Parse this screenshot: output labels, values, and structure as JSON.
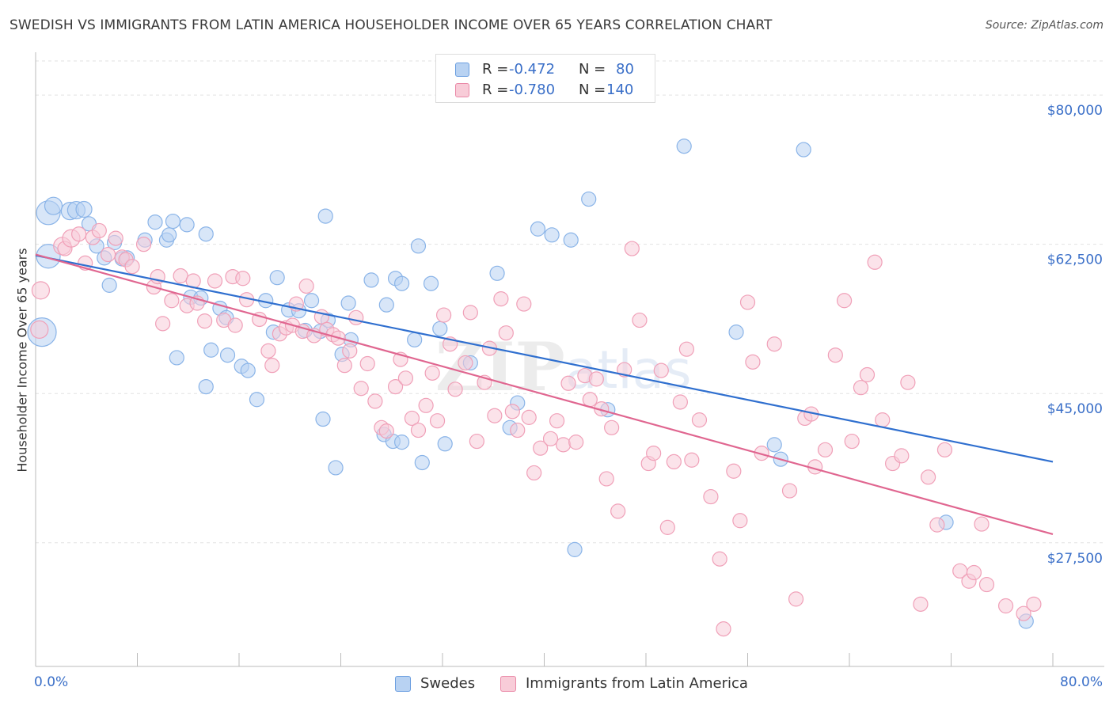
{
  "title": "SWEDISH VS IMMIGRANTS FROM LATIN AMERICA HOUSEHOLDER INCOME OVER 65 YEARS CORRELATION CHART",
  "source": "Source: ZipAtlas.com",
  "watermark": {
    "zip": "ZIP",
    "atlas": "atlas"
  },
  "chart_data": {
    "type": "scatter",
    "xlabel": "",
    "ylabel": "Householder Income Over 65 years",
    "xlim": [
      0,
      80
    ],
    "ylim": [
      13000,
      84000
    ],
    "x_tick_labels": {
      "min": "0.0%",
      "max": "80.0%"
    },
    "y_ticks": [
      {
        "value": 80000,
        "label": "$80,000"
      },
      {
        "value": 62500,
        "label": "$62,500"
      },
      {
        "value": 45000,
        "label": "$45,000"
      },
      {
        "value": 27500,
        "label": "$27,500"
      }
    ],
    "grid": true,
    "legend_position": "bottom-center",
    "stats_box": [
      {
        "r_label": "R = ",
        "r_value": "-0.472",
        "n_label": "N = ",
        "n_value": "80"
      },
      {
        "r_label": "R = ",
        "r_value": "-0.780",
        "n_label": "N = ",
        "n_value": "140"
      }
    ],
    "series": [
      {
        "name": "Swedes",
        "color": "#8ab4e8",
        "fill": "#b8d2f2",
        "line_color": "#2f6fcf",
        "trend": {
          "x": [
            0,
            80
          ],
          "y": [
            61200,
            37000
          ]
        },
        "points": [
          [
            1.0,
            66200,
            15
          ],
          [
            1.4,
            67000,
            11
          ],
          [
            1.0,
            61100,
            15
          ],
          [
            0.5,
            52200,
            18
          ],
          [
            2.7,
            66400,
            11
          ],
          [
            3.2,
            66500,
            11
          ],
          [
            3.8,
            66600,
            10
          ],
          [
            4.2,
            64900,
            9
          ],
          [
            4.8,
            62300,
            9
          ],
          [
            5.4,
            60900,
            9
          ],
          [
            6.2,
            62700,
            9
          ],
          [
            6.8,
            60800,
            9
          ],
          [
            7.2,
            60900,
            9
          ],
          [
            5.8,
            57700,
            9
          ],
          [
            8.6,
            63000,
            9
          ],
          [
            9.4,
            65100,
            9
          ],
          [
            10.3,
            63000,
            9
          ],
          [
            10.5,
            63600,
            9
          ],
          [
            10.8,
            65200,
            9
          ],
          [
            11.9,
            64800,
            9
          ],
          [
            13.4,
            63700,
            9
          ],
          [
            12.2,
            56300,
            9
          ],
          [
            13.0,
            56200,
            9
          ],
          [
            14.5,
            55000,
            9
          ],
          [
            15.0,
            53900,
            9
          ],
          [
            11.1,
            49200,
            9
          ],
          [
            13.8,
            50100,
            9
          ],
          [
            15.1,
            49500,
            9
          ],
          [
            16.2,
            48200,
            9
          ],
          [
            16.7,
            47700,
            9
          ],
          [
            13.4,
            45800,
            9
          ],
          [
            17.4,
            44300,
            9
          ],
          [
            18.7,
            52200,
            9
          ],
          [
            18.1,
            55900,
            9
          ],
          [
            19.0,
            58600,
            9
          ],
          [
            19.9,
            54800,
            9
          ],
          [
            20.7,
            54700,
            9
          ],
          [
            21.2,
            52400,
            9
          ],
          [
            21.7,
            55900,
            9
          ],
          [
            22.4,
            52300,
            9
          ],
          [
            22.8,
            65800,
            9
          ],
          [
            23.0,
            53600,
            9
          ],
          [
            22.6,
            42000,
            9
          ],
          [
            23.6,
            36300,
            9
          ],
          [
            24.1,
            49600,
            9
          ],
          [
            24.6,
            55600,
            9
          ],
          [
            24.8,
            51300,
            9
          ],
          [
            26.4,
            58300,
            9
          ],
          [
            27.4,
            40200,
            9
          ],
          [
            28.1,
            39400,
            9
          ],
          [
            28.8,
            39300,
            9
          ],
          [
            27.6,
            55400,
            9
          ],
          [
            28.3,
            58500,
            9
          ],
          [
            28.8,
            57900,
            9
          ],
          [
            29.8,
            51300,
            9
          ],
          [
            30.1,
            62300,
            9
          ],
          [
            30.4,
            36900,
            9
          ],
          [
            31.1,
            57900,
            9
          ],
          [
            31.8,
            52600,
            9
          ],
          [
            32.2,
            39100,
            9
          ],
          [
            34.2,
            48600,
            9
          ],
          [
            36.3,
            59100,
            9
          ],
          [
            37.3,
            41000,
            9
          ],
          [
            37.9,
            43900,
            9
          ],
          [
            39.5,
            64300,
            9
          ],
          [
            40.6,
            63600,
            9
          ],
          [
            42.1,
            63000,
            9
          ],
          [
            42.4,
            26700,
            9
          ],
          [
            43.5,
            67800,
            9
          ],
          [
            45.0,
            43100,
            9
          ],
          [
            51.0,
            74000,
            9
          ],
          [
            55.1,
            52200,
            9
          ],
          [
            58.1,
            39000,
            9
          ],
          [
            58.6,
            37300,
            9
          ],
          [
            60.4,
            73600,
            9
          ],
          [
            71.6,
            29900,
            9
          ],
          [
            77.9,
            18300,
            9
          ]
        ]
      },
      {
        "name": "Immigrants from Latin America",
        "color": "#f0a0b8",
        "fill": "#f8ccd8",
        "line_color": "#e06690",
        "trend": {
          "x": [
            0,
            80
          ],
          "y": [
            61300,
            28500
          ]
        },
        "points": [
          [
            0.4,
            57100,
            11
          ],
          [
            0.3,
            52500,
            11
          ],
          [
            2.1,
            62300,
            11
          ],
          [
            2.3,
            62000,
            9
          ],
          [
            2.8,
            63200,
            11
          ],
          [
            3.4,
            63700,
            9
          ],
          [
            3.9,
            60300,
            9
          ],
          [
            4.5,
            63300,
            9
          ],
          [
            5.0,
            64100,
            9
          ],
          [
            5.7,
            61300,
            9
          ],
          [
            6.3,
            63200,
            9
          ],
          [
            6.8,
            61000,
            9
          ],
          [
            7.1,
            60700,
            9
          ],
          [
            7.6,
            59900,
            9
          ],
          [
            8.5,
            62500,
            9
          ],
          [
            9.3,
            57500,
            9
          ],
          [
            9.6,
            58700,
            9
          ],
          [
            10.0,
            53200,
            9
          ],
          [
            10.7,
            55900,
            9
          ],
          [
            11.4,
            58800,
            9
          ],
          [
            11.9,
            55300,
            9
          ],
          [
            12.4,
            58200,
            9
          ],
          [
            12.7,
            55600,
            9
          ],
          [
            13.3,
            53500,
            9
          ],
          [
            14.1,
            58200,
            9
          ],
          [
            14.8,
            53600,
            9
          ],
          [
            15.5,
            58700,
            9
          ],
          [
            15.7,
            53000,
            9
          ],
          [
            16.3,
            58500,
            9
          ],
          [
            16.6,
            56000,
            9
          ],
          [
            17.6,
            53700,
            9
          ],
          [
            18.3,
            50000,
            9
          ],
          [
            18.6,
            48300,
            9
          ],
          [
            19.2,
            52000,
            9
          ],
          [
            19.7,
            52700,
            9
          ],
          [
            20.2,
            53000,
            9
          ],
          [
            20.5,
            55500,
            9
          ],
          [
            21.0,
            52300,
            9
          ],
          [
            21.3,
            57600,
            9
          ],
          [
            21.9,
            51800,
            9
          ],
          [
            22.5,
            54000,
            9
          ],
          [
            22.9,
            52500,
            9
          ],
          [
            23.4,
            51900,
            9
          ],
          [
            23.8,
            51500,
            9
          ],
          [
            24.3,
            48300,
            9
          ],
          [
            24.7,
            50000,
            9
          ],
          [
            25.2,
            53900,
            9
          ],
          [
            25.6,
            45600,
            9
          ],
          [
            26.1,
            48500,
            9
          ],
          [
            26.7,
            44100,
            9
          ],
          [
            27.2,
            41000,
            9
          ],
          [
            27.6,
            40600,
            9
          ],
          [
            28.3,
            45800,
            9
          ],
          [
            28.7,
            49000,
            9
          ],
          [
            29.1,
            46800,
            9
          ],
          [
            29.6,
            42100,
            9
          ],
          [
            30.1,
            40700,
            9
          ],
          [
            30.7,
            43600,
            9
          ],
          [
            31.2,
            47400,
            9
          ],
          [
            31.6,
            41800,
            9
          ],
          [
            32.1,
            54200,
            9
          ],
          [
            32.6,
            50800,
            9
          ],
          [
            33.0,
            45500,
            9
          ],
          [
            33.8,
            48600,
            9
          ],
          [
            34.2,
            54500,
            9
          ],
          [
            34.7,
            39400,
            9
          ],
          [
            35.3,
            46300,
            9
          ],
          [
            35.7,
            50300,
            9
          ],
          [
            36.1,
            42400,
            9
          ],
          [
            36.6,
            56100,
            9
          ],
          [
            37.0,
            52100,
            9
          ],
          [
            37.5,
            42900,
            9
          ],
          [
            37.9,
            40700,
            9
          ],
          [
            38.4,
            55500,
            9
          ],
          [
            38.8,
            42200,
            9
          ],
          [
            39.2,
            35700,
            9
          ],
          [
            39.7,
            38600,
            9
          ],
          [
            40.5,
            39700,
            9
          ],
          [
            41.0,
            41800,
            9
          ],
          [
            41.5,
            39000,
            9
          ],
          [
            41.9,
            46200,
            9
          ],
          [
            42.5,
            39300,
            9
          ],
          [
            43.2,
            47100,
            9
          ],
          [
            43.6,
            44300,
            9
          ],
          [
            44.1,
            46700,
            9
          ],
          [
            44.5,
            43200,
            9
          ],
          [
            44.9,
            35000,
            9
          ],
          [
            45.3,
            41000,
            9
          ],
          [
            45.8,
            31200,
            9
          ],
          [
            46.3,
            47800,
            9
          ],
          [
            46.9,
            62000,
            9
          ],
          [
            47.5,
            53600,
            9
          ],
          [
            48.2,
            36800,
            9
          ],
          [
            48.6,
            38000,
            9
          ],
          [
            49.2,
            47700,
            9
          ],
          [
            49.7,
            29300,
            9
          ],
          [
            50.2,
            37000,
            9
          ],
          [
            50.7,
            44000,
            9
          ],
          [
            51.2,
            50200,
            9
          ],
          [
            51.6,
            37200,
            9
          ],
          [
            52.2,
            41900,
            9
          ],
          [
            53.1,
            32900,
            9
          ],
          [
            53.8,
            25600,
            9
          ],
          [
            54.1,
            17400,
            9
          ],
          [
            54.9,
            35900,
            9
          ],
          [
            55.4,
            30100,
            9
          ],
          [
            56.0,
            55700,
            9
          ],
          [
            56.4,
            48700,
            9
          ],
          [
            57.1,
            38000,
            9
          ],
          [
            58.1,
            50800,
            9
          ],
          [
            59.3,
            33600,
            9
          ],
          [
            59.8,
            20900,
            9
          ],
          [
            60.5,
            42100,
            9
          ],
          [
            61.0,
            42600,
            9
          ],
          [
            61.3,
            36400,
            9
          ],
          [
            62.1,
            38400,
            9
          ],
          [
            62.9,
            49500,
            9
          ],
          [
            63.6,
            55900,
            9
          ],
          [
            64.2,
            39400,
            9
          ],
          [
            64.9,
            45700,
            9
          ],
          [
            65.4,
            47200,
            9
          ],
          [
            66.0,
            60400,
            9
          ],
          [
            66.6,
            41900,
            9
          ],
          [
            67.4,
            36800,
            9
          ],
          [
            68.1,
            37700,
            9
          ],
          [
            68.6,
            46300,
            9
          ],
          [
            69.6,
            20300,
            9
          ],
          [
            70.2,
            35200,
            9
          ],
          [
            70.9,
            29600,
            9
          ],
          [
            71.5,
            38400,
            9
          ],
          [
            72.7,
            24200,
            9
          ],
          [
            73.4,
            23000,
            9
          ],
          [
            73.8,
            24000,
            9
          ],
          [
            74.4,
            29700,
            9
          ],
          [
            74.8,
            22600,
            9
          ],
          [
            76.3,
            20100,
            9
          ],
          [
            77.7,
            19200,
            9
          ],
          [
            78.5,
            20300,
            9
          ]
        ]
      }
    ]
  }
}
